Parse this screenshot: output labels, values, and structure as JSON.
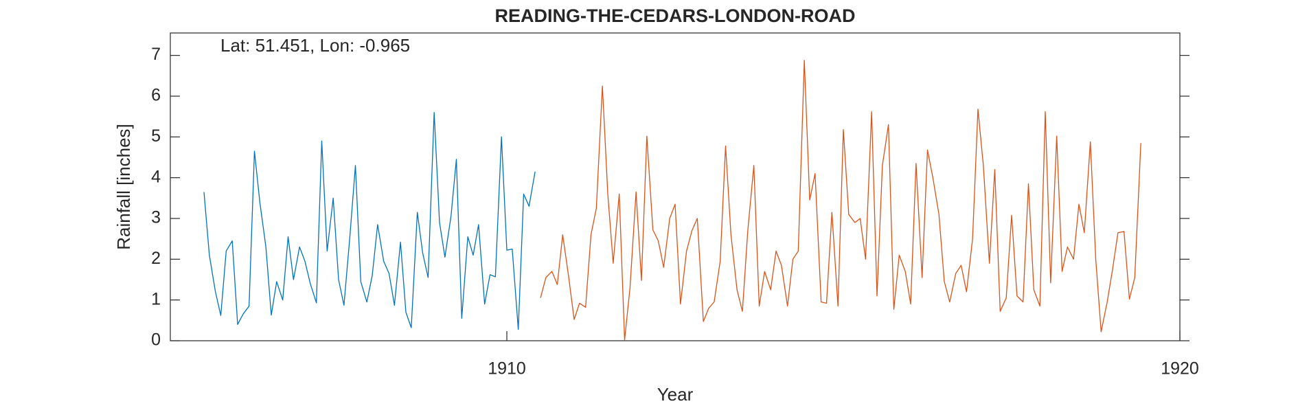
{
  "chart_data": {
    "type": "line",
    "title": "READING-THE-CEDARS-LONDON-ROAD",
    "annotation": "Lat: 51.451, Lon: -0.965",
    "xlabel": "Year",
    "ylabel": "Rainfall [inches]",
    "xlim": [
      1905,
      1920
    ],
    "xticks": [
      1910,
      1920
    ],
    "ylim": [
      0,
      7.55
    ],
    "yticks": [
      0,
      1,
      2,
      3,
      4,
      5,
      6,
      7
    ],
    "series": [
      {
        "color": "#0072bd",
        "x": [
          1905.5,
          1905.58,
          1905.67,
          1905.75,
          1905.83,
          1905.92,
          1906,
          1906.08,
          1906.17,
          1906.25,
          1906.33,
          1906.42,
          1906.5,
          1906.58,
          1906.67,
          1906.75,
          1906.83,
          1906.92,
          1907,
          1907.08,
          1907.17,
          1907.25,
          1907.33,
          1907.42,
          1907.5,
          1907.58,
          1907.67,
          1907.75,
          1907.83,
          1907.92,
          1908,
          1908.08,
          1908.17,
          1908.25,
          1908.33,
          1908.42,
          1908.5,
          1908.58,
          1908.67,
          1908.75,
          1908.83,
          1908.92,
          1909,
          1909.08,
          1909.17,
          1909.25,
          1909.33,
          1909.42,
          1909.5,
          1909.58,
          1909.67,
          1909.75,
          1909.83,
          1909.92,
          1910,
          1910.08,
          1910.17,
          1910.25,
          1910.33,
          1910.42
        ],
        "values": [
          3.65,
          2.1,
          1.2,
          0.62,
          2.2,
          2.45,
          0.4,
          0.65,
          0.85,
          4.65,
          3.4,
          2.3,
          0.63,
          1.45,
          1.0,
          2.55,
          1.5,
          2.3,
          1.95,
          1.4,
          0.93,
          4.9,
          2.2,
          3.5,
          1.5,
          0.87,
          2.6,
          4.3,
          1.45,
          0.95,
          1.6,
          2.85,
          1.95,
          1.65,
          0.87,
          2.42,
          0.7,
          0.32,
          3.15,
          2.15,
          1.55,
          5.6,
          2.9,
          2.05,
          3.05,
          4.45,
          0.55,
          2.55,
          2.1,
          2.85,
          0.9,
          1.62,
          1.57,
          5.0,
          2.22,
          2.25,
          0.28,
          3.6,
          3.3,
          4.15
        ]
      },
      {
        "color": "#d95319",
        "x": [
          1910.5,
          1910.58,
          1910.67,
          1910.75,
          1910.83,
          1910.92,
          1911,
          1911.08,
          1911.17,
          1911.25,
          1911.33,
          1911.42,
          1911.5,
          1911.58,
          1911.67,
          1911.75,
          1911.83,
          1911.92,
          1912,
          1912.08,
          1912.17,
          1912.25,
          1912.33,
          1912.42,
          1912.5,
          1912.58,
          1912.67,
          1912.75,
          1912.83,
          1912.92,
          1913,
          1913.08,
          1913.17,
          1913.25,
          1913.33,
          1913.42,
          1913.5,
          1913.58,
          1913.67,
          1913.75,
          1913.83,
          1913.92,
          1914,
          1914.08,
          1914.17,
          1914.25,
          1914.33,
          1914.42,
          1914.5,
          1914.58,
          1914.67,
          1914.75,
          1914.83,
          1914.92,
          1915,
          1915.08,
          1915.17,
          1915.25,
          1915.33,
          1915.42,
          1915.5,
          1915.58,
          1915.67,
          1915.75,
          1915.83,
          1915.92,
          1916,
          1916.08,
          1916.17,
          1916.25,
          1916.33,
          1916.42,
          1916.5,
          1916.58,
          1916.67,
          1916.75,
          1916.83,
          1916.92,
          1917,
          1917.08,
          1917.17,
          1917.25,
          1917.33,
          1917.42,
          1917.5,
          1917.58,
          1917.67,
          1917.75,
          1917.83,
          1917.92,
          1918,
          1918.08,
          1918.17,
          1918.25,
          1918.33,
          1918.42,
          1918.5,
          1918.58,
          1918.67,
          1918.75,
          1918.83,
          1918.92,
          1919,
          1919.08,
          1919.17,
          1919.25,
          1919.33,
          1919.42
        ],
        "values": [
          1.05,
          1.55,
          1.7,
          1.38,
          2.6,
          1.55,
          0.52,
          0.92,
          0.82,
          2.6,
          3.25,
          6.25,
          3.6,
          1.9,
          3.6,
          0.02,
          1.3,
          3.65,
          1.48,
          5.02,
          2.72,
          2.45,
          1.8,
          3.0,
          3.35,
          0.9,
          2.2,
          2.7,
          3.0,
          0.47,
          0.8,
          0.95,
          1.95,
          4.78,
          2.6,
          1.25,
          0.72,
          2.7,
          4.3,
          0.85,
          1.7,
          1.25,
          2.2,
          1.85,
          0.85,
          2.0,
          2.2,
          6.88,
          3.45,
          4.1,
          0.95,
          0.92,
          3.15,
          0.85,
          5.18,
          3.1,
          2.9,
          3.0,
          2.0,
          5.62,
          1.1,
          4.3,
          5.3,
          0.77,
          2.1,
          1.7,
          0.9,
          4.35,
          1.55,
          4.68,
          4.0,
          3.1,
          1.45,
          0.95,
          1.65,
          1.85,
          1.2,
          2.5,
          5.68,
          4.3,
          1.9,
          4.2,
          0.72,
          1.05,
          3.08,
          1.1,
          0.95,
          3.85,
          1.25,
          0.85,
          5.62,
          1.42,
          5.02,
          1.7,
          2.3,
          2.0,
          3.35,
          2.65,
          4.88,
          2.0,
          0.22,
          0.95,
          1.75,
          2.65,
          2.68,
          1.02,
          1.55,
          4.85
        ]
      }
    ]
  }
}
